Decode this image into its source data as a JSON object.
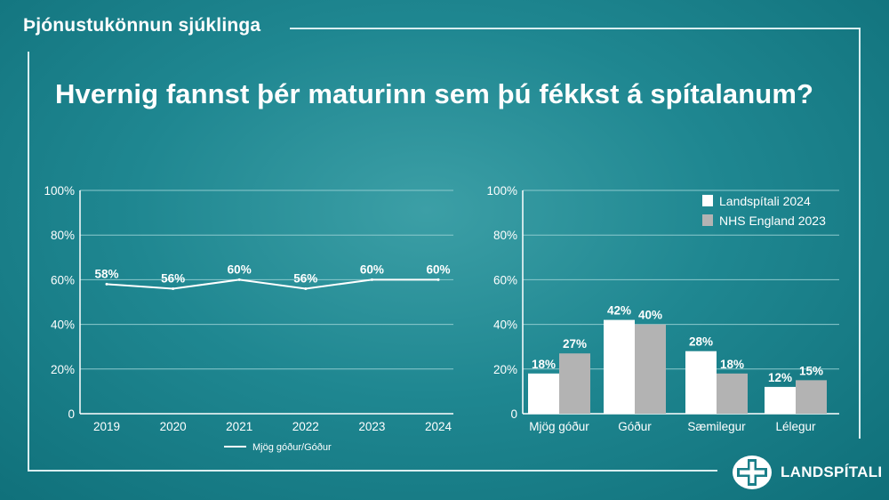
{
  "header": {
    "supertitle": "Þjónustukönnun sjúklinga",
    "title": "Hvernig fannst þér maturinn sem þú fékkst á spítalanum?"
  },
  "brand": {
    "name": "LANDSPÍTALI"
  },
  "colors": {
    "line": "#ffffff",
    "landspitali": "#ffffff",
    "nhs": "#b3b3b3",
    "grid": "#8cc9cd"
  },
  "chart_data": [
    {
      "type": "line",
      "title": "",
      "categories": [
        "2019",
        "2020",
        "2021",
        "2022",
        "2023",
        "2024"
      ],
      "series": [
        {
          "name": "Mjög góður/Góður",
          "values": [
            58,
            56,
            60,
            56,
            60,
            60
          ]
        }
      ],
      "labels": [
        "58%",
        "56%",
        "60%",
        "56%",
        "60%",
        "60%"
      ],
      "yticks": [
        "0",
        "20%",
        "40%",
        "60%",
        "80%",
        "100%"
      ],
      "ylim": [
        0,
        100
      ],
      "legend": "bottom"
    },
    {
      "type": "bar",
      "title": "",
      "categories": [
        "Mjög góður",
        "Góður",
        "Sæmilegur",
        "Lélegur"
      ],
      "series": [
        {
          "name": "Landspítali 2024",
          "values": [
            18,
            42,
            28,
            12
          ],
          "labels": [
            "18%",
            "42%",
            "28%",
            "12%"
          ]
        },
        {
          "name": "NHS England 2023",
          "values": [
            27,
            40,
            18,
            15
          ],
          "labels": [
            "27%",
            "40%",
            "18%",
            "15%"
          ]
        }
      ],
      "yticks": [
        "0",
        "20%",
        "40%",
        "60%",
        "80%",
        "100%"
      ],
      "ylim": [
        0,
        100
      ],
      "legend": "top-right"
    }
  ]
}
